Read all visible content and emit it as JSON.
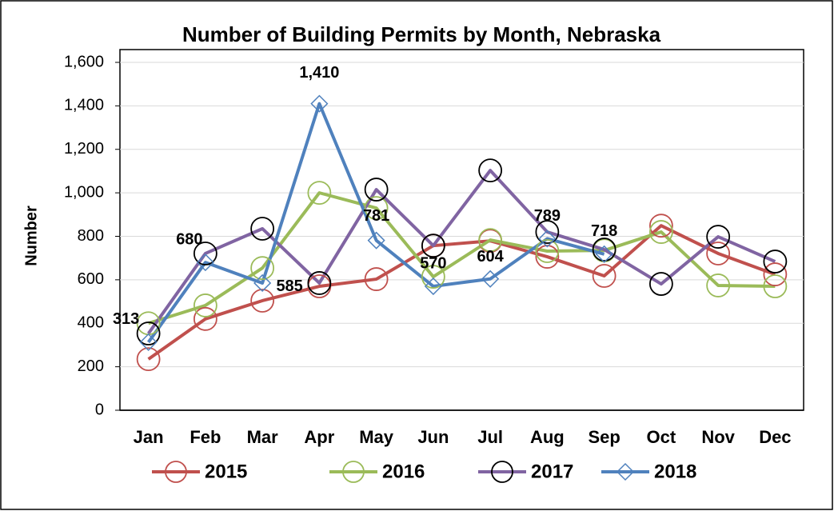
{
  "chart_data": {
    "type": "line",
    "title": "Number of Building Permits by Month, Nebraska",
    "y_label": "Number",
    "categories": [
      "Jan",
      "Feb",
      "Mar",
      "Apr",
      "May",
      "Jun",
      "Jul",
      "Aug",
      "Sep",
      "Oct",
      "Nov",
      "Dec"
    ],
    "series": [
      {
        "name": "2015",
        "color": "#c0504d",
        "marker_color": "#c0504d",
        "marker": "circle",
        "values": [
          235,
          420,
          504,
          570,
          603,
          757,
          779,
          706,
          618,
          849,
          721,
          625
        ]
      },
      {
        "name": "2016",
        "color": "#9bbb59",
        "marker_color": "#9bbb59",
        "marker": "circle",
        "values": [
          400,
          482,
          654,
          1000,
          930,
          614,
          783,
          732,
          735,
          820,
          574,
          570
        ]
      },
      {
        "name": "2017",
        "color": "#8064a2",
        "marker_color": "#000000",
        "marker": "circle",
        "values": [
          353,
          721,
          835,
          585,
          1015,
          757,
          1103,
          820,
          739,
          581,
          798,
          684
        ]
      },
      {
        "name": "2018",
        "color": "#4f81bd",
        "marker_color": "#4f81bd",
        "marker": "diamond",
        "values": [
          313,
          680,
          585,
          1410,
          781,
          570,
          604,
          789,
          718,
          null,
          null,
          null
        ],
        "value_labels": [
          "313",
          "680",
          "585",
          "1,410",
          "781",
          "570",
          "604",
          "789",
          "718",
          null,
          null,
          null
        ]
      }
    ],
    "ylim": [
      0,
      1600
    ],
    "yticks": [
      0,
      200,
      400,
      600,
      800,
      {
        "value": 1000,
        "label": "1,000"
      },
      {
        "value": 1200,
        "label": "1,200"
      },
      {
        "value": 1400,
        "label": "1,400"
      },
      {
        "value": 1600,
        "label": "1,600"
      }
    ],
    "grid": true,
    "legend": "bottom"
  }
}
